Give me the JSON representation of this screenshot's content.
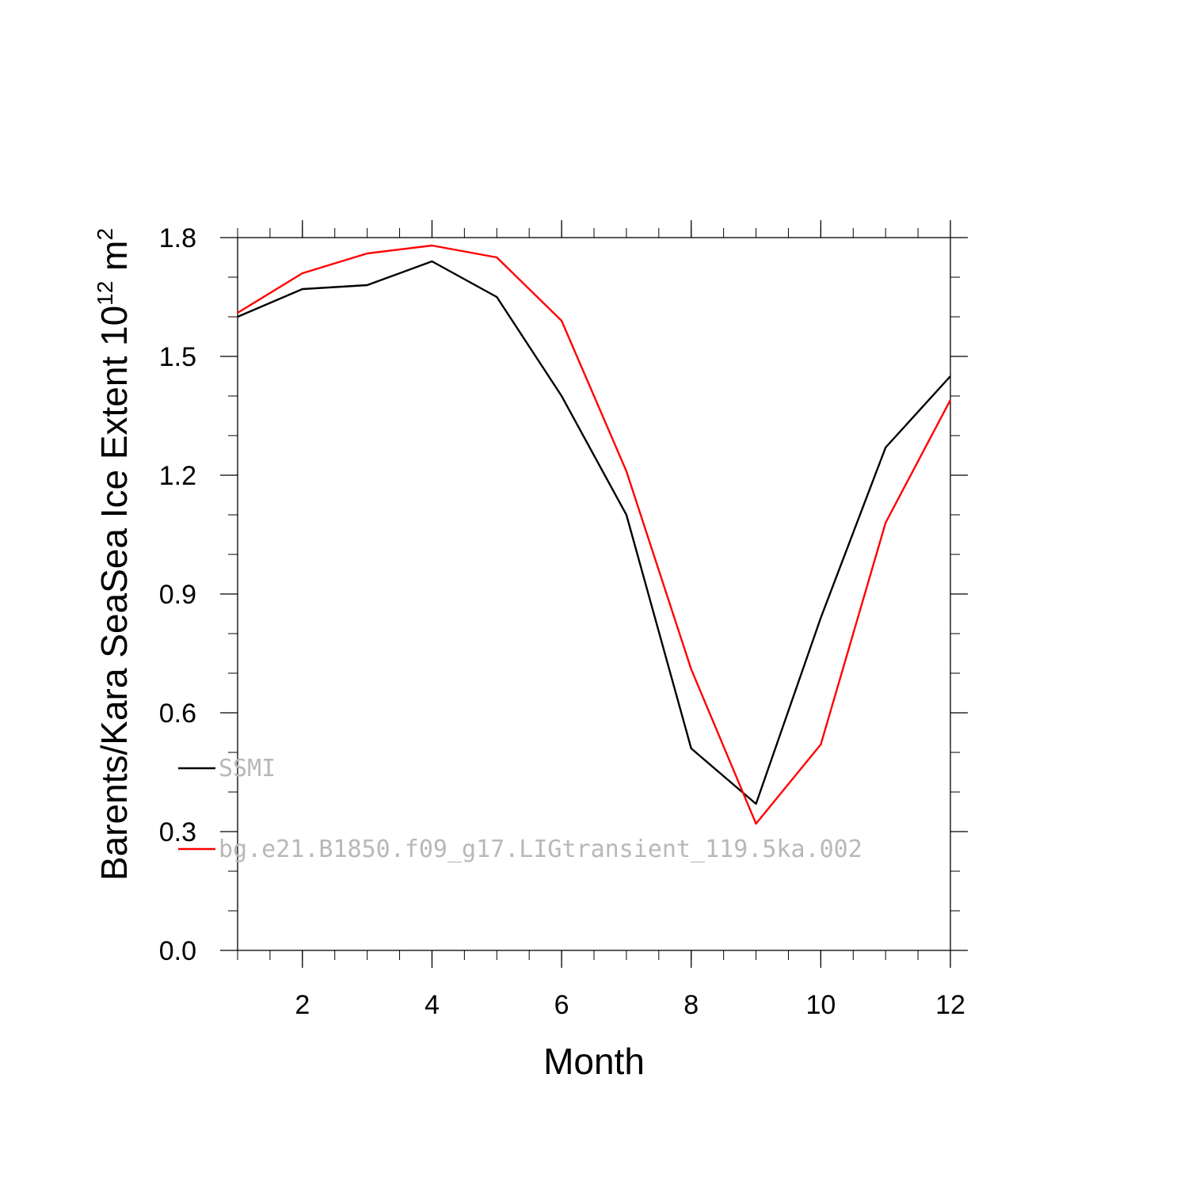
{
  "chart_data": {
    "type": "line",
    "xlabel": "Month",
    "ylabel": {
      "main": "Barents/Kara SeaSea Ice Extent 10",
      "exponent": "12",
      "unit": " m",
      "unit_exponent": "2"
    },
    "xlim": [
      1,
      12
    ],
    "ylim": [
      0,
      1.8
    ],
    "x_ticks": [
      2,
      4,
      6,
      8,
      10,
      12
    ],
    "x_tick_labels": [
      "2",
      "4",
      "6",
      "8",
      "10",
      "12"
    ],
    "y_ticks": [
      0,
      0.3,
      0.6,
      0.9,
      1.2,
      1.5,
      1.8
    ],
    "y_tick_labels": [
      "0.0",
      "0.3",
      "0.6",
      "0.9",
      "1.2",
      "1.5",
      "1.8"
    ],
    "grid": false,
    "legend_position": "lower-left inside",
    "x": [
      1,
      2,
      3,
      4,
      5,
      6,
      7,
      8,
      9,
      10,
      11,
      12
    ],
    "series": [
      {
        "name": "SSMI",
        "color": "#000000",
        "values": [
          1.6,
          1.67,
          1.68,
          1.74,
          1.65,
          1.4,
          1.1,
          0.51,
          0.37,
          0.84,
          1.27,
          1.45
        ]
      },
      {
        "name": "bg.e21.B1850.f09_g17.LIGtransient_119.5ka.002",
        "color": "#ff0000",
        "values": [
          1.61,
          1.71,
          1.76,
          1.78,
          1.75,
          1.59,
          1.21,
          0.71,
          0.32,
          0.52,
          1.08,
          1.39
        ]
      }
    ]
  }
}
